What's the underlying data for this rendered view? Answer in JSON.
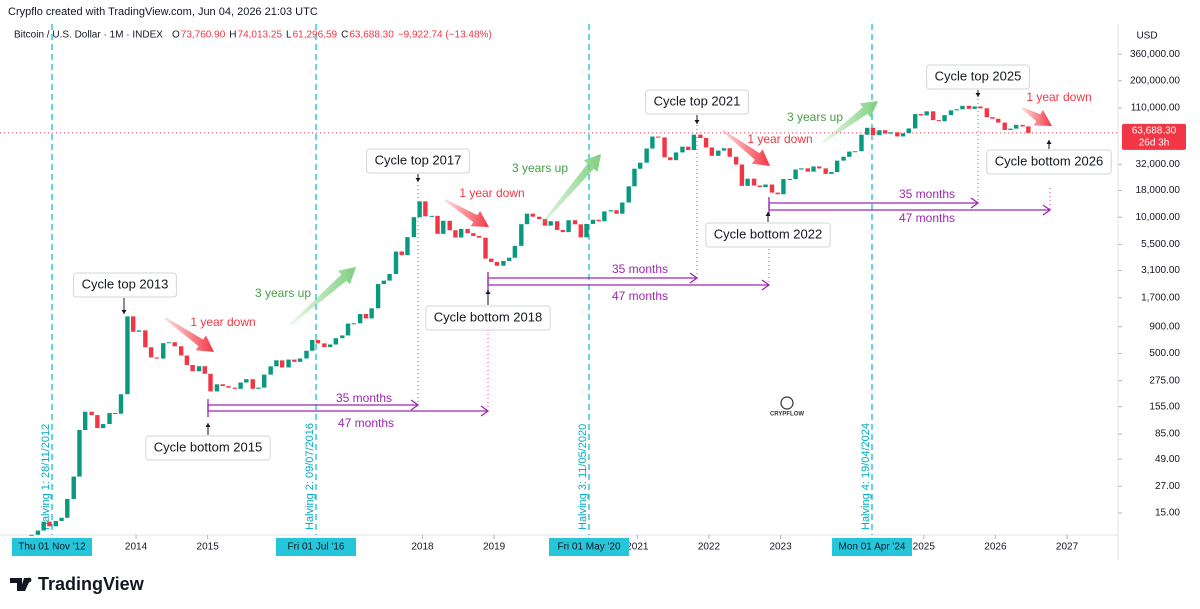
{
  "header": {
    "credit": "Crypflo created with TradingView.com, Jun 04, 2026 21:03 UTC",
    "symbol": "Bitcoin / U.S. Dollar · 1M · INDEX",
    "ohlc": [
      {
        "key": "O",
        "value": "73,760.90"
      },
      {
        "key": "H",
        "value": "74,013.25"
      },
      {
        "key": "L",
        "value": "61,296.59"
      },
      {
        "key": "C",
        "value": "63,688.30"
      }
    ],
    "change": "−9,922.74 (−13.48%)"
  },
  "brand": "TradingView",
  "watermark": "CRYPFLOW",
  "chart_data": {
    "type": "candlestick",
    "up_color": "#089981",
    "down_color": "#f23645",
    "log_scale": true,
    "currency": "USD",
    "last_price_label": "63,688.30",
    "countdown": "26d 3h",
    "xlim": [
      2012.24,
      2027.67
    ],
    "xticks": [
      2014,
      2015,
      2018,
      2019,
      2021,
      2022,
      2023,
      2025,
      2026,
      2027
    ],
    "ylim": [
      9.25,
      440000
    ],
    "yticks": [
      {
        "value": 360000,
        "label": "360,000.00"
      },
      {
        "value": 200000,
        "label": "200,000.00"
      },
      {
        "value": 110000,
        "label": "110,000.00"
      },
      {
        "value": 32000,
        "label": "32,000.00"
      },
      {
        "value": 18000,
        "label": "18,000.00"
      },
      {
        "value": 10000,
        "label": "10,000.00"
      },
      {
        "value": 5500,
        "label": "5,500.00"
      },
      {
        "value": 3100,
        "label": "3,100.00"
      },
      {
        "value": 1700,
        "label": "1,700.00"
      },
      {
        "value": 900,
        "label": "900.00"
      },
      {
        "value": 500,
        "label": "500.00"
      },
      {
        "value": 275,
        "label": "275.00"
      },
      {
        "value": 155,
        "label": "155.00"
      },
      {
        "value": 85,
        "label": "85.00"
      },
      {
        "value": 49,
        "label": "49.00"
      },
      {
        "value": 27,
        "label": "27.00"
      },
      {
        "value": 15,
        "label": "15.00"
      }
    ],
    "x": [
      2012.54,
      2012.63,
      2012.71,
      2012.79,
      2012.88,
      2012.96,
      2013.04,
      2013.13,
      2013.21,
      2013.29,
      2013.38,
      2013.46,
      2013.54,
      2013.63,
      2013.71,
      2013.79,
      2013.88,
      2013.96,
      2014.04,
      2014.13,
      2014.21,
      2014.29,
      2014.38,
      2014.46,
      2014.54,
      2014.63,
      2014.71,
      2014.79,
      2014.88,
      2014.96,
      2015.04,
      2015.13,
      2015.21,
      2015.29,
      2015.38,
      2015.46,
      2015.54,
      2015.63,
      2015.71,
      2015.79,
      2015.88,
      2015.96,
      2016.04,
      2016.13,
      2016.21,
      2016.29,
      2016.38,
      2016.46,
      2016.54,
      2016.63,
      2016.71,
      2016.79,
      2016.88,
      2016.96,
      2017.04,
      2017.13,
      2017.21,
      2017.29,
      2017.38,
      2017.46,
      2017.54,
      2017.63,
      2017.71,
      2017.79,
      2017.88,
      2017.96,
      2018.04,
      2018.13,
      2018.21,
      2018.29,
      2018.38,
      2018.46,
      2018.54,
      2018.63,
      2018.71,
      2018.79,
      2018.88,
      2018.96,
      2019.04,
      2019.13,
      2019.21,
      2019.29,
      2019.38,
      2019.46,
      2019.54,
      2019.63,
      2019.71,
      2019.79,
      2019.88,
      2019.96,
      2020.04,
      2020.13,
      2020.21,
      2020.29,
      2020.38,
      2020.46,
      2020.54,
      2020.63,
      2020.71,
      2020.79,
      2020.88,
      2020.96,
      2021.04,
      2021.13,
      2021.21,
      2021.29,
      2021.38,
      2021.46,
      2021.54,
      2021.63,
      2021.71,
      2021.79,
      2021.88,
      2021.96,
      2022.04,
      2022.13,
      2022.21,
      2022.29,
      2022.38,
      2022.46,
      2022.54,
      2022.63,
      2022.71,
      2022.79,
      2022.88,
      2022.96,
      2023.04,
      2023.13,
      2023.21,
      2023.29,
      2023.38,
      2023.46,
      2023.54,
      2023.63,
      2023.71,
      2023.79,
      2023.88,
      2023.96,
      2024.04,
      2024.13,
      2024.21,
      2024.29,
      2024.38,
      2024.46,
      2024.54,
      2024.63,
      2024.71,
      2024.79,
      2024.88,
      2024.96,
      2025.04,
      2025.13,
      2025.21,
      2025.29,
      2025.38,
      2025.46,
      2025.54,
      2025.63,
      2025.71,
      2025.79,
      2025.88,
      2025.96,
      2026.04,
      2026.13,
      2026.21,
      2026.29,
      2026.38,
      2026.46
    ],
    "values": [
      9.3,
      10.2,
      12.4,
      11.2,
      12.6,
      13.5,
      20.4,
      33.4,
      93,
      139,
      129,
      97,
      106,
      135,
      133,
      204,
      1130,
      805,
      830,
      573,
      458,
      447,
      627,
      640,
      586,
      478,
      388,
      338,
      378,
      320,
      217,
      254,
      244,
      236,
      230,
      264,
      284,
      230,
      236,
      314,
      377,
      430,
      368,
      437,
      416,
      448,
      531,
      673,
      624,
      575,
      609,
      700,
      743,
      964,
      970,
      1190,
      1080,
      1350,
      2300,
      2480,
      2870,
      4700,
      4340,
      6450,
      10000,
      14150,
      10200,
      10300,
      6930,
      9240,
      7500,
      6400,
      7730,
      7030,
      6620,
      6370,
      4020,
      3740,
      3440,
      3820,
      4100,
      5320,
      8570,
      10800,
      10100,
      9600,
      8300,
      9150,
      7550,
      7200,
      9350,
      8550,
      6420,
      8620,
      9450,
      9140,
      11350,
      11650,
      10780,
      13800,
      19700,
      29000,
      33100,
      45200,
      58800,
      57700,
      37300,
      35000,
      41500,
      47100,
      43800,
      61300,
      57000,
      46300,
      38500,
      43200,
      45500,
      37700,
      31800,
      19900,
      23300,
      20050,
      19400,
      20500,
      17150,
      16550,
      23100,
      23150,
      28500,
      29250,
      27200,
      30500,
      29200,
      25900,
      26970,
      34650,
      37700,
      42300,
      42600,
      61200,
      71300,
      60700,
      67500,
      62700,
      64600,
      59000,
      63300,
      70300,
      96400,
      93400,
      102400,
      84400,
      82500,
      94200,
      104600,
      107100,
      115700,
      108200,
      114000,
      109500,
      90000,
      87000,
      80000,
      68000,
      70000,
      76000,
      73500,
      63688.3
    ],
    "halvings": [
      {
        "label": "Halving 1: 28/11/2012",
        "date_box": "Thu 01 Nov '12"
      },
      {
        "label": "Halving 2: 09/07/2016",
        "date_box": "Fri 01 Jul '16"
      },
      {
        "label": "Halving 3: 11/05/2020",
        "date_box": "Fri 01 May '20"
      },
      {
        "label": "Halving 4: 19/04/2024",
        "date_box": "Mon 01 Apr '24"
      }
    ],
    "annotations": [
      "Cycle top 2013",
      "Cycle bottom 2015",
      "1 year down",
      "3 years up",
      "35 months",
      "47 months",
      "Cycle top 2017",
      "Cycle bottom 2018",
      "1 year down",
      "3 years up",
      "35 months",
      "47 months",
      "Cycle top 2021",
      "Cycle bottom 2022",
      "1 year down",
      "3 years up",
      "35 months",
      "47 months",
      "Cycle top 2025",
      "Cycle bottom 2026",
      "1 year down"
    ]
  }
}
